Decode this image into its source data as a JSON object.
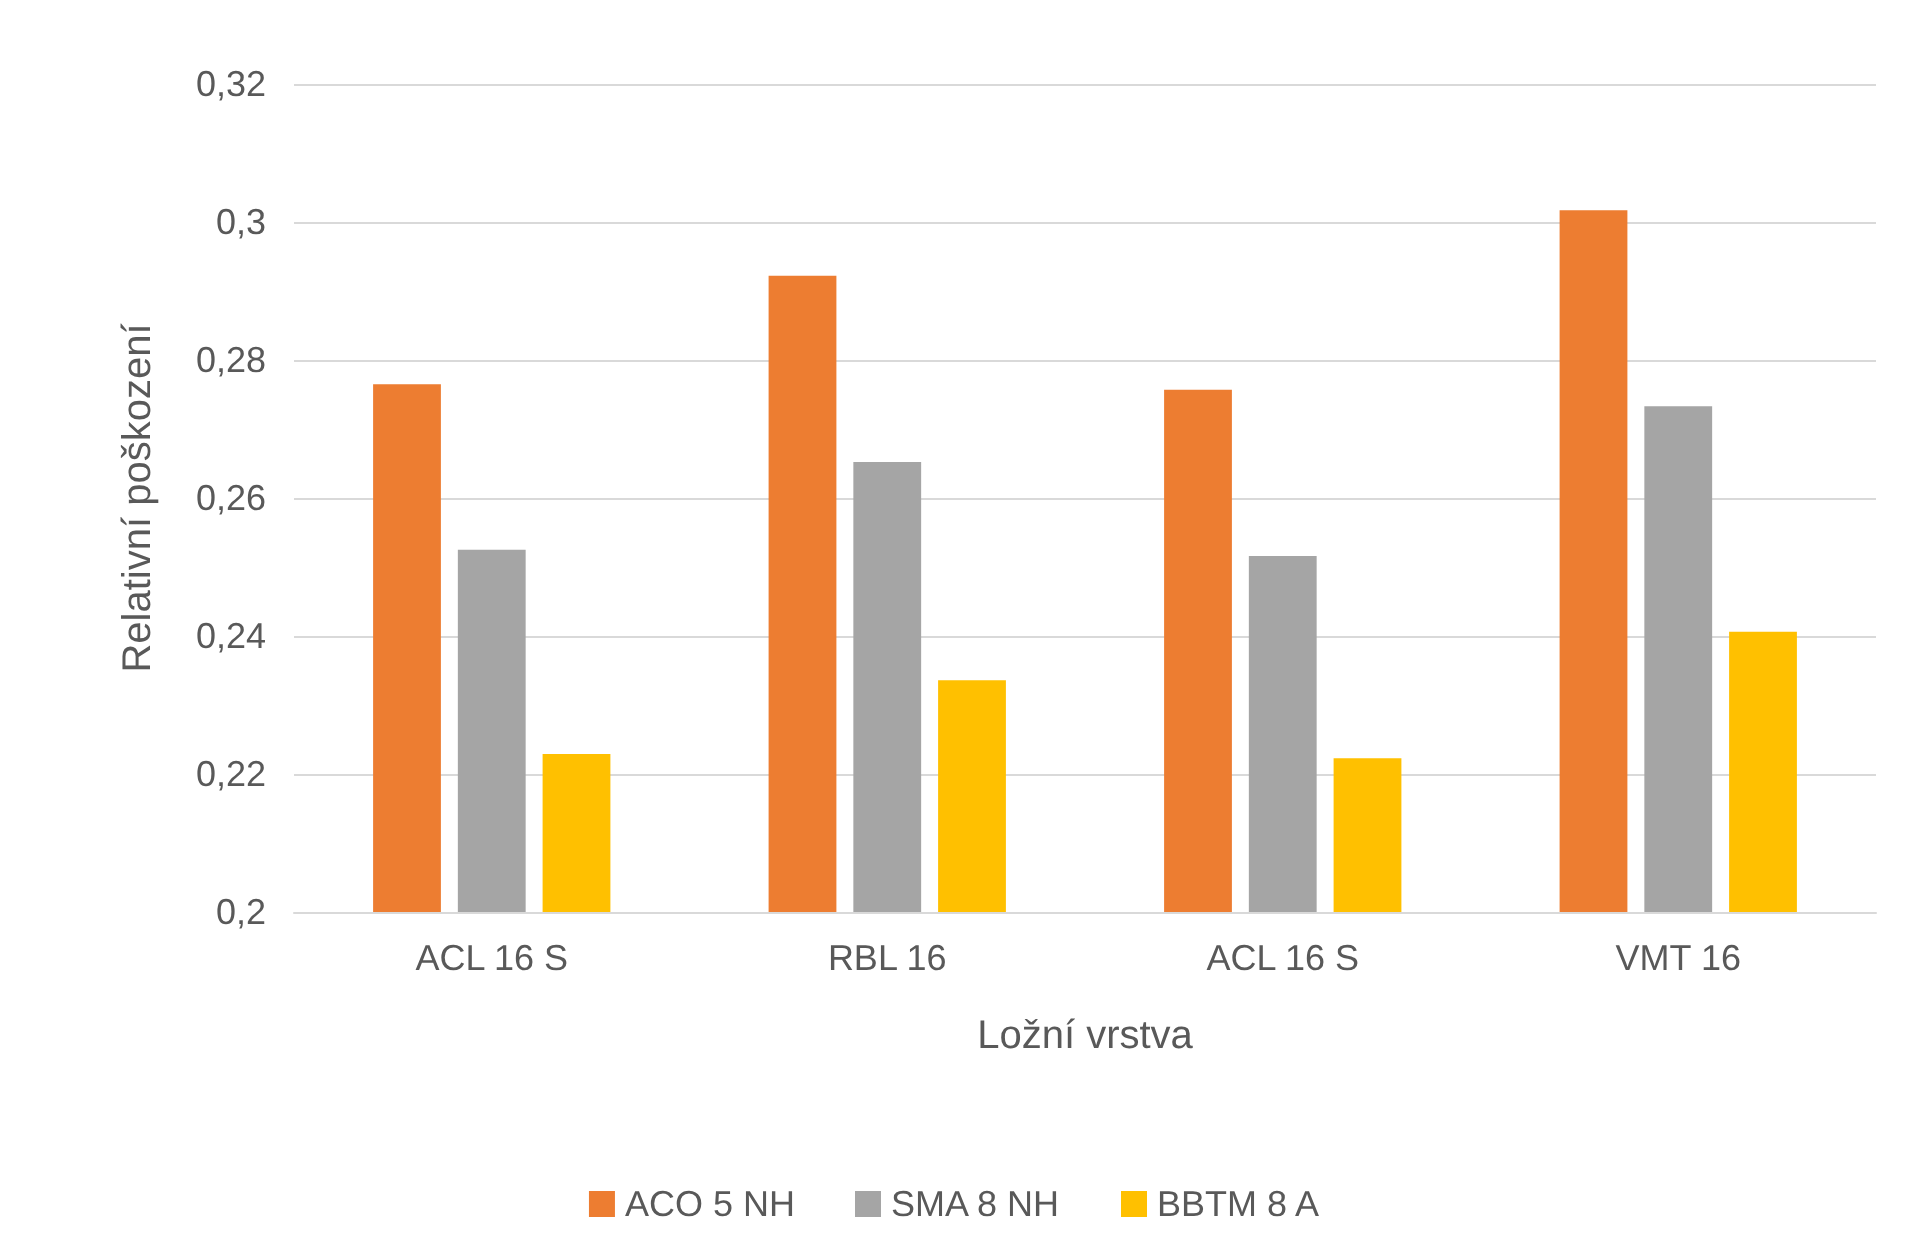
{
  "chart_data": {
    "type": "bar",
    "xlabel": "Ložní vrstva",
    "ylabel": "Relativní poškození",
    "categories": [
      "ACL 16 S",
      "RBL 16",
      "ACL 16 S",
      "VMT 16"
    ],
    "series": [
      {
        "name": "ACO 5 NH",
        "color": "#ed7d31",
        "values": [
          0.2765,
          0.2922,
          0.2757,
          0.3017
        ]
      },
      {
        "name": "SMA 8 NH",
        "color": "#a5a5a5",
        "values": [
          0.2525,
          0.2652,
          0.2516,
          0.2733
        ]
      },
      {
        "name": "BBTM 8 A",
        "color": "#ffc000",
        "values": [
          0.2229,
          0.2336,
          0.2223,
          0.2406
        ]
      }
    ],
    "ylim": [
      0.2,
      0.32
    ],
    "yticks": [
      {
        "value": 0.2,
        "label": "0,2"
      },
      {
        "value": 0.22,
        "label": "0,22"
      },
      {
        "value": 0.24,
        "label": "0,24"
      },
      {
        "value": 0.26,
        "label": "0,26"
      },
      {
        "value": 0.28,
        "label": "0,28"
      },
      {
        "value": 0.3,
        "label": "0,3"
      },
      {
        "value": 0.32,
        "label": "0,32"
      }
    ],
    "grid": "y",
    "legend": "bottom"
  }
}
